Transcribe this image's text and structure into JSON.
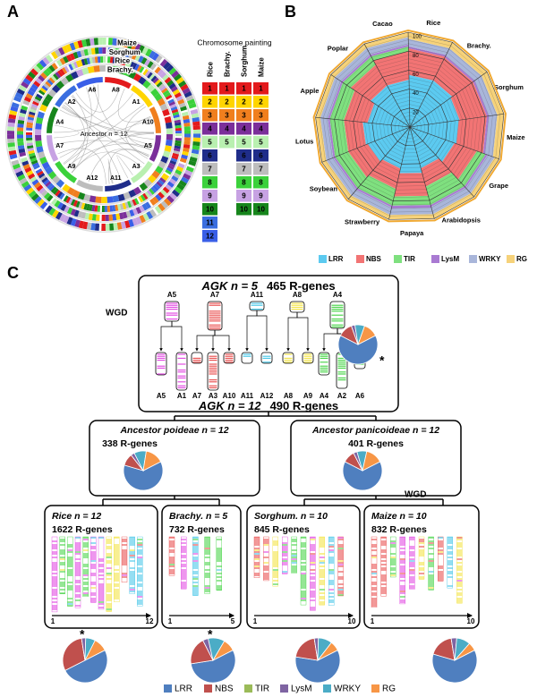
{
  "panel_a": {
    "label": "A",
    "ring_labels": [
      "Maize",
      "Sorghum",
      "Rice",
      "Brachy."
    ],
    "center_label": "Ancestor n = 12",
    "chromosomes": [
      "A8",
      "A1",
      "A10",
      "A5",
      "A3",
      "A11",
      "A12",
      "A9",
      "A7",
      "A4",
      "A2",
      "A6"
    ],
    "chromosome_painting": {
      "title": "Chromosome painting",
      "columns": [
        "Rice",
        "Brachy.",
        "Sorghum",
        "Maize"
      ],
      "colors": [
        "#e31a1c",
        "#ffd500",
        "#f07f1e",
        "#7b2f9a",
        "#b9f0b0",
        "#1f2d8a",
        "#bdbdbd",
        "#3bd13b",
        "#c7a2e3",
        "#17861c",
        "#3a6ee0",
        "#3a5fe8"
      ],
      "rows": [
        [
          "1",
          "1",
          "1",
          "1"
        ],
        [
          "2",
          "2",
          "2",
          "2"
        ],
        [
          "3",
          "3",
          "3",
          "3"
        ],
        [
          "4",
          "4",
          "4",
          "4"
        ],
        [
          "5",
          "5",
          "5",
          "5"
        ],
        [
          "6",
          null,
          "6",
          "6"
        ],
        [
          "7",
          null,
          "7",
          "7"
        ],
        [
          "8",
          null,
          "8",
          "8"
        ],
        [
          "9",
          null,
          "9",
          "9"
        ],
        [
          "10",
          null,
          "10",
          "10"
        ],
        [
          "11",
          null,
          null,
          null
        ],
        [
          "12",
          null,
          null,
          null
        ]
      ]
    }
  },
  "panel_b": {
    "label": "B",
    "type": "radar",
    "categories": [
      "Cacao",
      "Rice",
      "Brachy.",
      "Sorghum",
      "Maize",
      "Grape",
      "Arabidopsis",
      "Papaya",
      "Strawberry",
      "Soybean",
      "Lotus",
      "Apple",
      "Poplar"
    ],
    "rlim": [
      0,
      100
    ],
    "rticks": [
      20,
      40,
      60,
      80,
      100
    ],
    "series": [
      {
        "name": "LRR",
        "color": "#5ccaf0",
        "values": [
          50,
          55,
          55,
          53,
          52,
          50,
          45,
          50,
          45,
          48,
          50,
          45,
          50
        ]
      },
      {
        "name": "NBS",
        "color": "#f27474",
        "values": [
          30,
          28,
          27,
          29,
          30,
          25,
          20,
          25,
          22,
          22,
          20,
          25,
          25
        ]
      },
      {
        "name": "TIR",
        "color": "#7fe07f",
        "values": [
          5,
          0,
          0,
          0,
          0,
          10,
          20,
          10,
          18,
          15,
          15,
          15,
          10
        ]
      },
      {
        "name": "LysM",
        "color": "#a97ad2",
        "values": [
          2,
          2,
          2,
          2,
          2,
          2,
          2,
          3,
          2,
          2,
          2,
          2,
          2
        ]
      },
      {
        "name": "WRKY",
        "color": "#a9b6da",
        "values": [
          8,
          8,
          9,
          9,
          9,
          8,
          8,
          7,
          8,
          8,
          8,
          8,
          8
        ]
      },
      {
        "name": "RG",
        "color": "#f6d27a",
        "values": [
          5,
          7,
          7,
          7,
          7,
          5,
          5,
          5,
          5,
          5,
          5,
          5,
          5
        ]
      }
    ]
  },
  "panel_c": {
    "label": "C",
    "agk5": {
      "title": "AGK n = 5",
      "genes": "465 R-genes",
      "wgd": "WGD",
      "parents": [
        "A5",
        "A7",
        "A11",
        "A8",
        "A4"
      ],
      "children": [
        "A5",
        "A1",
        "A7",
        "A3",
        "A10",
        "A11",
        "A12",
        "A8",
        "A9",
        "A4",
        "A2",
        "A6"
      ],
      "pie": [
        65,
        12,
        0,
        3,
        8,
        12
      ],
      "star": "*"
    },
    "agk12": {
      "title": "AGK n = 12",
      "genes": "490 R-genes"
    },
    "poideae": {
      "title": "Ancestor poideae n = 12",
      "genes": "338 R-genes",
      "pie": [
        62,
        10,
        0,
        3,
        10,
        15
      ]
    },
    "panicoideae": {
      "title": "Ancestor panicoideae n = 12",
      "genes": "401 R-genes",
      "pie": [
        65,
        10,
        0,
        3,
        8,
        14
      ],
      "wgd": "WGD"
    },
    "species": [
      {
        "title": "Rice n = 12",
        "genes": "1622 R-genes",
        "axis": [
          "1",
          "12"
        ],
        "pie": [
          50,
          30,
          0,
          3,
          7,
          10
        ],
        "star": "*"
      },
      {
        "title": "Brachy. n = 5",
        "genes": "732 R-genes",
        "axis": [
          "1",
          "5"
        ],
        "pie": [
          55,
          20,
          0,
          4,
          12,
          9
        ],
        "star": "*"
      },
      {
        "title": "Sorghum. n = 10",
        "genes": "845 R-genes",
        "axis": [
          "1",
          "10"
        ],
        "pie": [
          60,
          20,
          0,
          3,
          10,
          7
        ]
      },
      {
        "title": "Maize n = 10",
        "genes": "832 R-genes",
        "axis": [
          "1",
          "10"
        ],
        "pie": [
          62,
          18,
          0,
          4,
          10,
          6
        ]
      }
    ],
    "legend": {
      "labels": [
        "LRR",
        "NBS",
        "TIR",
        "LysM",
        "WRKY",
        "RG"
      ],
      "colors": [
        "#4f7fbf",
        "#c0504d",
        "#9bbb59",
        "#7f64a2",
        "#4bacc6",
        "#f79646"
      ]
    }
  }
}
